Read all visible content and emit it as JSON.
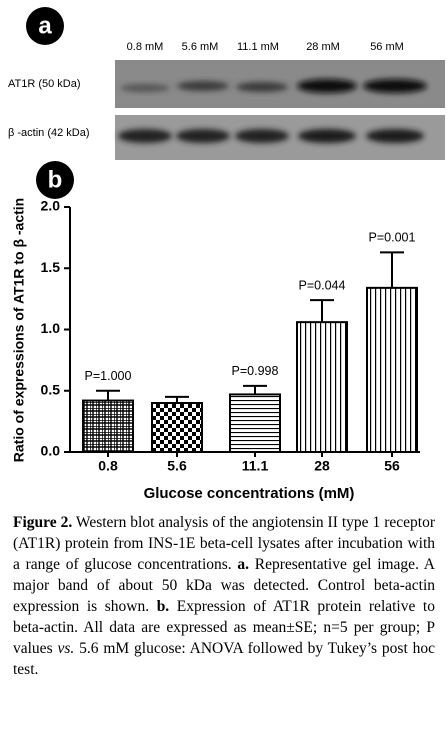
{
  "panel_a": {
    "label": "a",
    "lanes": [
      "0.8 mM",
      "5.6 mM",
      "11.1 mM",
      "28 mM",
      "56 mM"
    ],
    "rows": [
      "AT1R (50 kDa)",
      "β -actin (42 kDa)"
    ]
  },
  "panel_b_label": "b",
  "chart_data": {
    "type": "bar",
    "x_label": "Glucose concentrations (mM)",
    "y_label": "Ratio of expressions of AT1R to β -actin",
    "categories": [
      "0.8",
      "5.6",
      "11.1",
      "28",
      "56"
    ],
    "values": [
      0.42,
      0.4,
      0.47,
      1.06,
      1.34
    ],
    "errors": [
      0.08,
      0.05,
      0.07,
      0.18,
      0.29
    ],
    "annotations": [
      "P=1.000",
      null,
      "P=0.998",
      "P=0.044",
      "P=0.001"
    ],
    "patterns": [
      "grid",
      "checker",
      "hlines",
      "vlines",
      "vlines"
    ],
    "color": "#000000",
    "ylim": [
      0,
      2
    ],
    "yticks": [
      {
        "value": 0,
        "label": "0.0"
      },
      {
        "value": 0.5,
        "label": "0.5"
      },
      {
        "value": 1,
        "label": "1.0"
      },
      {
        "value": 1.5,
        "label": "1.5"
      },
      {
        "value": 2,
        "label": "2.0"
      }
    ]
  },
  "caption": {
    "segments": [
      "Figure 2.",
      " Western blot analysis of the angiotensin II type 1 receptor (AT1R) protein from INS-1E beta-cell lysates after incubation with a range of glucose concentrations. ",
      "a.",
      " Representative gel image. A major band of about 50 kDa was detected. Control beta-actin expression is shown. ",
      "b.",
      " Expression of AT1R protein relative to beta-actin. All data are expressed as mean±SE; n=5 per group; P values ",
      "vs.",
      " 5.6 mM glucose: ANOVA followed by Tukey’s post hoc test."
    ]
  }
}
